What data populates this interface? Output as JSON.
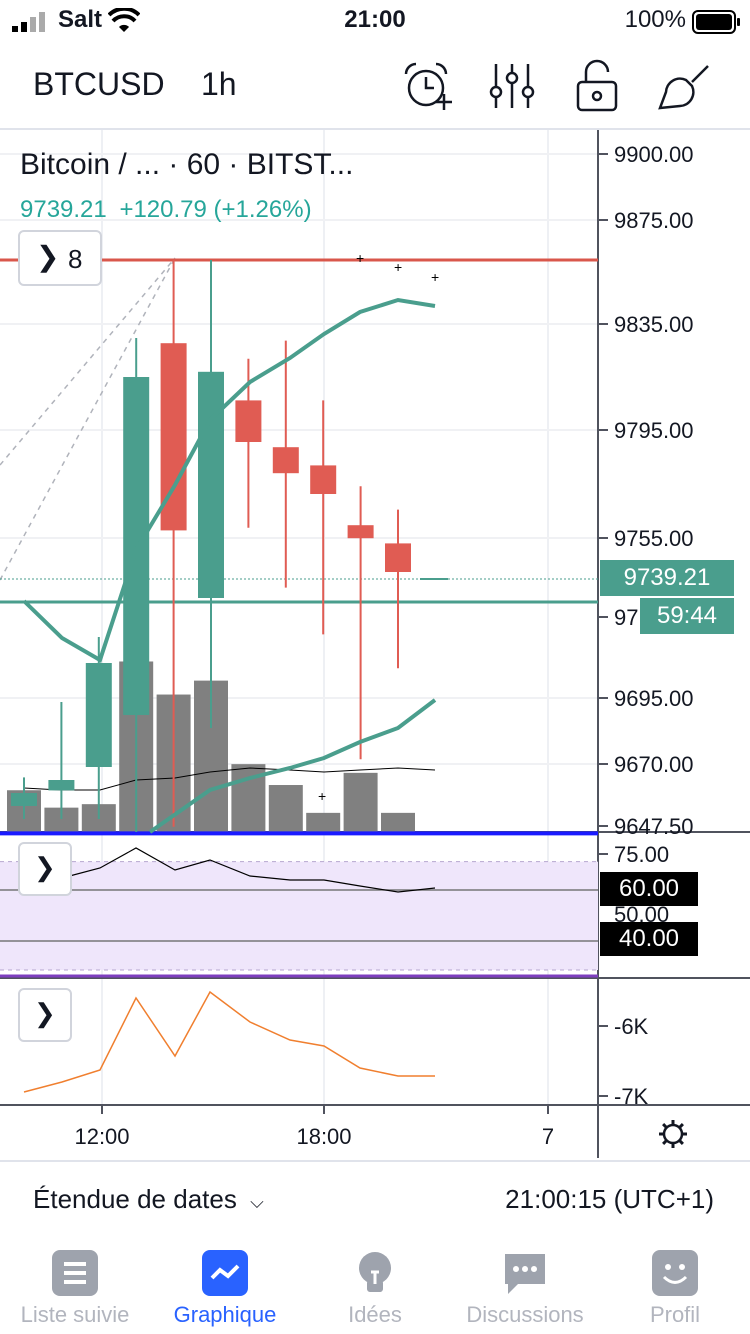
{
  "status_bar": {
    "carrier": "Salt",
    "time": "21:00",
    "battery": "100%"
  },
  "toolbar": {
    "symbol": "BTCUSD",
    "interval": "1h",
    "icons": [
      "alarm-add-icon",
      "indicators-icon",
      "lock-icon",
      "drawing-icon"
    ]
  },
  "legend": {
    "title": "Bitcoin / ... · 60 · BITST...",
    "price": "9739.21",
    "change": "+120.79 (+1.26%)",
    "collapsed_count": "8"
  },
  "price_axis": [
    "9900.00",
    "9875.00",
    "9835.00",
    "9795.00",
    "9755.00",
    "97",
    "9695.00",
    "9670.00",
    "9647.50"
  ],
  "current_price_tag": "9739.21",
  "countdown_tag": "59:44",
  "rsi_axis": [
    "75.00",
    "50.00"
  ],
  "rsi_tags": [
    "60.00",
    "40.00"
  ],
  "macd_axis": [
    "-6K",
    "-7K"
  ],
  "time_axis": [
    "12:00",
    "18:00",
    "7"
  ],
  "bottom_bar": {
    "date_range": "Étendue de dates",
    "clock": "21:00:15 (UTC+1)"
  },
  "tabs": [
    {
      "label": "Liste suivie",
      "active": false
    },
    {
      "label": "Graphique",
      "active": true
    },
    {
      "label": "Idées",
      "active": false
    },
    {
      "label": "Discussions",
      "active": false
    },
    {
      "label": "Profil",
      "active": false
    }
  ],
  "colors": {
    "up": "#4a9e8d",
    "down": "#e05c53",
    "accent": "#2962ff",
    "resistance": "#d9574b",
    "support": "#1a1aff"
  },
  "chart_data": {
    "type": "candlestick",
    "interval": "1h",
    "candles": [
      {
        "o": 9650,
        "h": 9661,
        "l": 9645,
        "c": 9655
      },
      {
        "o": 9656,
        "h": 9690,
        "l": 9645,
        "c": 9660
      },
      {
        "o": 9665,
        "h": 9715,
        "l": 9645,
        "c": 9705
      },
      {
        "o": 9685,
        "h": 9830,
        "l": 9640,
        "c": 9815
      },
      {
        "o": 9828,
        "h": 9860,
        "l": 9642,
        "c": 9756
      },
      {
        "o": 9730,
        "h": 9860,
        "l": 9680,
        "c": 9817
      },
      {
        "o": 9806,
        "h": 9822,
        "l": 9757,
        "c": 9790
      },
      {
        "o": 9788,
        "h": 9829,
        "l": 9734,
        "c": 9778
      },
      {
        "o": 9781,
        "h": 9806,
        "l": 9716,
        "c": 9770
      },
      {
        "o": 9758,
        "h": 9773,
        "l": 9668,
        "c": 9753
      },
      {
        "o": 9751,
        "h": 9764,
        "l": 9703,
        "c": 9740
      }
    ],
    "volume": [
      0.24,
      0.14,
      0.16,
      0.98,
      0.79,
      0.87,
      0.39,
      0.27,
      0.11,
      0.34,
      0.11
    ],
    "resistance": 9860,
    "support": 9651,
    "ma_upper": [
      9747,
      9740,
      9735,
      9750,
      9775,
      9790,
      9803,
      9815,
      9825,
      9833,
      9837
    ],
    "ma_lower": [
      9647,
      9650,
      9660,
      9668,
      9673,
      9677,
      9683,
      9690
    ],
    "ma_mid": [
      9728,
      9718,
      9713,
      9745
    ],
    "rsi": [
      63,
      72,
      76,
      70,
      73,
      69,
      68,
      67,
      64,
      60,
      61
    ],
    "macd": [
      -7000,
      -6900,
      -6800,
      -6200,
      -6550,
      -6100,
      -6350,
      -6500,
      -6600,
      -6800,
      -6810
    ],
    "ylim": [
      9640,
      9910
    ]
  }
}
